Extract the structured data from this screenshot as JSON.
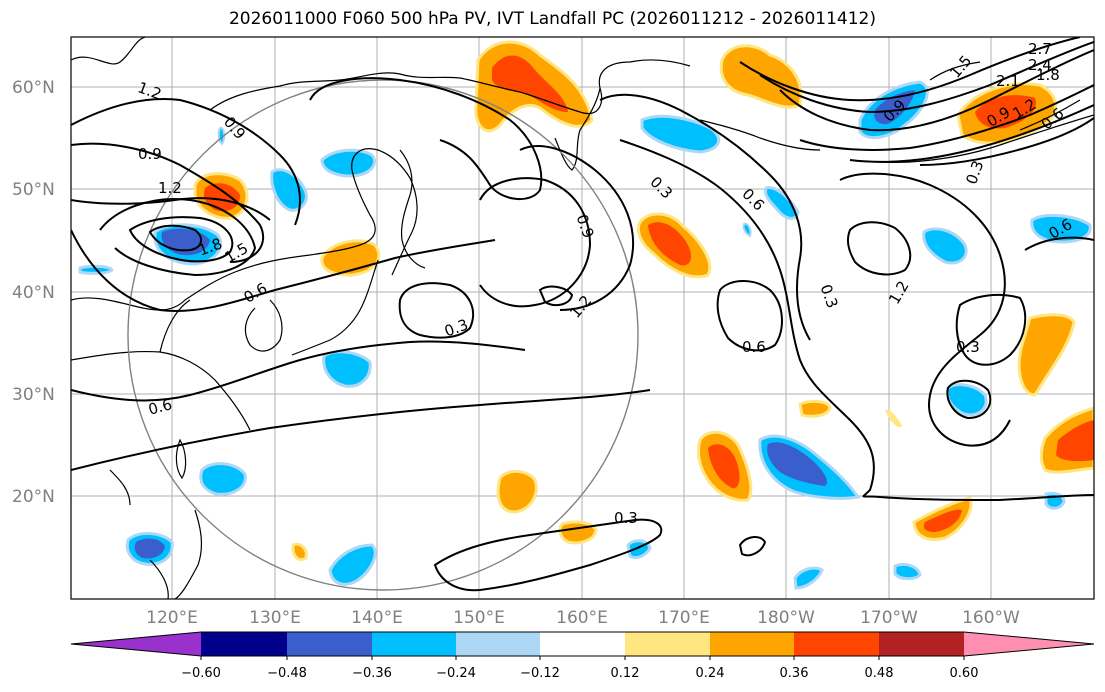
{
  "title": "2026011000 F060 500 hPa PV, IVT Landfall PC (2026011212 - 2026011412)",
  "colors": {
    "neg": [
      "#9932cc",
      "#00008b",
      "#3a5fcd",
      "#00bfff",
      "#add8f5"
    ],
    "pos": [
      "#ffe680",
      "#ffa500",
      "#ff4500",
      "#b22222",
      "#ff8fb0"
    ],
    "neutral": "#ffffff",
    "grid": "#b0b0b0",
    "coast": "#000000",
    "contour": "#000000",
    "circle": "#808080",
    "axis_label": "#808080"
  },
  "axes": {
    "lon_labels": [
      "120°E",
      "130°E",
      "140°E",
      "150°E",
      "160°E",
      "170°E",
      "180°W",
      "170°W",
      "160°W"
    ],
    "lat_labels": [
      "60°N",
      "50°N",
      "40°N",
      "30°N",
      "20°N"
    ]
  },
  "contour_labels": [
    "1.2",
    "0.9",
    "0.9",
    "1.2",
    "1.8",
    "1.5",
    "0.6",
    "0.6",
    "0.3",
    "1.2",
    "0.9",
    "0.3",
    "0.6",
    "0.3",
    "0.6",
    "1.2",
    "0.3",
    "0.3",
    "2.7",
    "2.4",
    "2.1",
    "1.8",
    "1.5",
    "0.9",
    "1.2",
    "0.6",
    "0.3",
    "0.9",
    "0.6"
  ],
  "colorbar": {
    "ticks": [
      "−0.60",
      "−0.48",
      "−0.36",
      "−0.24",
      "−0.12",
      "0.12",
      "0.24",
      "0.36",
      "0.48",
      "0.60"
    ]
  }
}
